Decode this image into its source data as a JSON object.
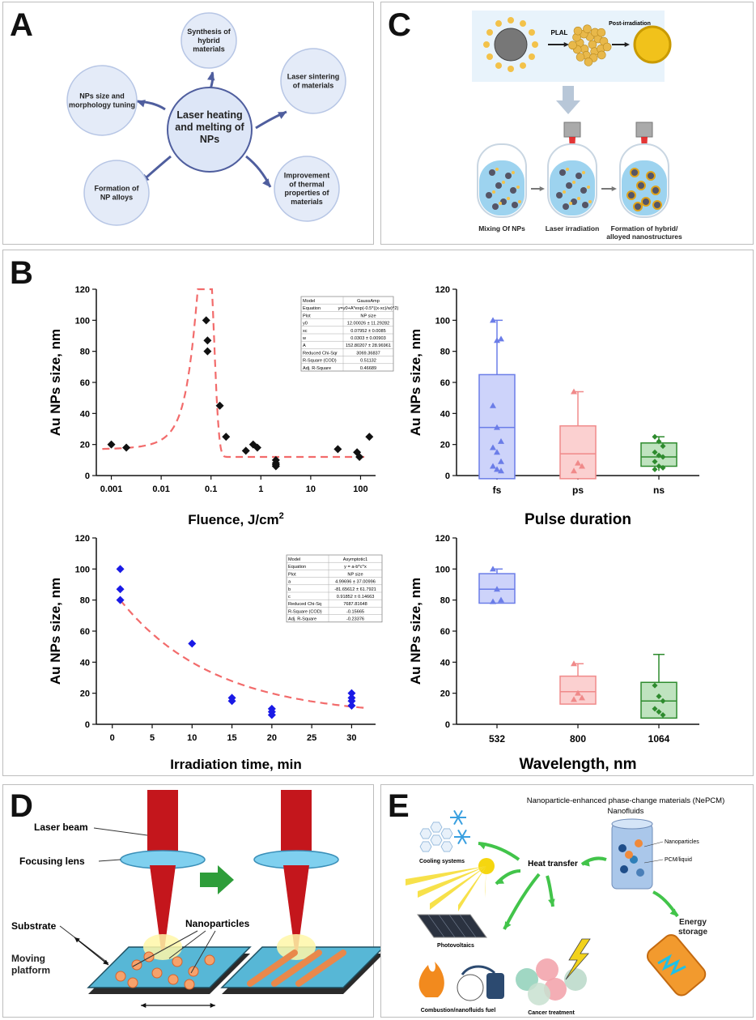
{
  "panels": {
    "A": {
      "label": "A",
      "center": [
        "Laser heating",
        "and melting of",
        "NPs"
      ],
      "nodes": [
        {
          "id": "synthesis",
          "lines": [
            "Synthesis of",
            "hybrid",
            "materials"
          ]
        },
        {
          "id": "sintering",
          "lines": [
            "Laser sintering",
            "of materials"
          ]
        },
        {
          "id": "improvement",
          "lines": [
            "Improvement",
            "of thermal",
            "properties of",
            "materials"
          ]
        },
        {
          "id": "alloys",
          "lines": [
            "Formation of",
            "NP alloys"
          ]
        },
        {
          "id": "tuning",
          "lines": [
            "NPs size and",
            "morphology tuning"
          ]
        }
      ]
    },
    "B": {
      "label": "B"
    },
    "C": {
      "label": "C",
      "pla": "PLAL",
      "post": "Post-irradiation",
      "tubes": [
        {
          "lines": [
            "Mixing Of NPs"
          ]
        },
        {
          "lines": [
            "Laser irradiation"
          ]
        },
        {
          "lines": [
            "Formation of hybrid/",
            "alloyed nanostructures"
          ]
        }
      ]
    },
    "D": {
      "label": "D",
      "laser_beam": "Laser beam",
      "focusing_lens": "Focusing lens",
      "nanoparticles": "Nanoparticles",
      "substrate": "Substrate",
      "moving": [
        "Moving",
        "platform"
      ]
    },
    "E": {
      "label": "E",
      "title": "Nanoparticle-enhanced phase-change materials (NePCM)",
      "subtitle": "Nanofluids",
      "heat": "Heat transfer",
      "nanoparticles": "Nanoparticles",
      "pcm": "PCM/liquid",
      "cooling": "Cooling systems",
      "pv": "Photovoltaics",
      "combustion": "Combustion/nanofluids fuel",
      "cancer": "Cancer treatment",
      "energy": [
        "Energy",
        "storage"
      ]
    }
  },
  "chart_data": [
    {
      "id": "fluence",
      "type": "scatter",
      "xscale": "log",
      "xlabel": "Fluence, J/cm²",
      "xlabel_main": "Fluence, J/cm",
      "xlabel_sup": "2",
      "ylabel": "Au NPs size, nm",
      "ylim": [
        0,
        120
      ],
      "xlim": [
        0.0005,
        200
      ],
      "yticks": [
        0,
        20,
        40,
        60,
        80,
        100,
        120
      ],
      "xticks": [
        0.001,
        0.01,
        0.1,
        1,
        10,
        100
      ],
      "xtick_labels": [
        "0.001",
        "0.01",
        "0.1",
        "1",
        "10",
        "100"
      ],
      "points": [
        [
          0.001,
          20
        ],
        [
          0.002,
          18
        ],
        [
          0.08,
          100
        ],
        [
          0.085,
          87
        ],
        [
          0.085,
          80
        ],
        [
          0.15,
          45
        ],
        [
          0.2,
          25
        ],
        [
          0.5,
          16
        ],
        [
          0.7,
          20
        ],
        [
          0.85,
          18
        ],
        [
          2,
          10
        ],
        [
          2,
          8
        ],
        [
          2,
          7
        ],
        [
          2,
          6
        ],
        [
          35,
          17
        ],
        [
          85,
          15
        ],
        [
          95,
          12
        ],
        [
          150,
          25
        ]
      ],
      "fit": {
        "model": "GaussAmp",
        "y0": 12.00026,
        "xc": 0.07952,
        "w": 0.0303,
        "A": 152.80207,
        "xmax": 0.25
      },
      "fit_table": [
        [
          "Model",
          "GaussAmp"
        ],
        [
          "Equation",
          "y=y0+A*exp(-0.5*((x-xc)/w)^2)"
        ],
        [
          "Plot",
          "NP size"
        ],
        [
          "y0",
          "12.00026 ± 11.29282"
        ],
        [
          "xc",
          "0.07952 ± 0.0085"
        ],
        [
          "w",
          "0.0303 ± 0.00903"
        ],
        [
          "A",
          "152.80207 ± 28.96961"
        ],
        [
          "Reduced Chi-Sqr",
          "3069.36837"
        ],
        [
          "R-Square (COD)",
          "0.51132"
        ],
        [
          "Adj. R-Square",
          "0.46689"
        ]
      ]
    },
    {
      "id": "pulse",
      "type": "box",
      "xlabel": "Pulse duration",
      "ylabel": "Au NPs size, nm",
      "ylim": [
        0,
        120
      ],
      "yticks": [
        0,
        20,
        40,
        60,
        80,
        100,
        120
      ],
      "categories": [
        "fs",
        "ps",
        "ns"
      ],
      "colors": [
        "#6b7de8",
        "#f08a8a",
        "#2e8b2e"
      ],
      "fills": [
        "#cdd3fa",
        "#fbd0d0",
        "#bfe3bf"
      ],
      "boxes": [
        {
          "min": -2,
          "q1": -2,
          "median": 31,
          "q3": 65,
          "max": 100,
          "points": [
            100,
            87,
            88,
            45,
            31,
            22,
            18,
            15,
            9,
            6,
            4,
            3
          ]
        },
        {
          "min": -2,
          "q1": -2,
          "median": 14,
          "q3": 32,
          "max": 54,
          "points": [
            54,
            8,
            6,
            3
          ]
        },
        {
          "min": 3,
          "q1": 6,
          "median": 12,
          "q3": 21,
          "max": 25,
          "points": [
            25,
            22,
            19,
            15,
            13,
            12,
            9,
            6,
            5,
            4
          ]
        }
      ]
    },
    {
      "id": "irradiation",
      "type": "scatter",
      "xlabel": "Irradiation time, min",
      "ylabel": "Au NPs size, nm",
      "ylim": [
        0,
        120
      ],
      "xlim": [
        -2,
        33
      ],
      "yticks": [
        0,
        20,
        40,
        60,
        80,
        100,
        120
      ],
      "xticks": [
        0,
        5,
        10,
        15,
        20,
        25,
        30
      ],
      "points": [
        [
          1,
          100
        ],
        [
          1,
          87
        ],
        [
          1,
          80
        ],
        [
          10,
          52
        ],
        [
          15,
          17
        ],
        [
          15,
          15
        ],
        [
          20,
          10
        ],
        [
          20,
          8
        ],
        [
          20,
          6
        ],
        [
          30,
          20
        ],
        [
          30,
          17
        ],
        [
          30,
          15
        ],
        [
          30,
          12
        ]
      ],
      "fit": {
        "model": "Asymptotic1",
        "a": 4.99696,
        "b": -81.65612,
        "c": 0.91852
      },
      "fit_table": [
        [
          "Model",
          "Asymptotic1"
        ],
        [
          "Equation",
          "y = a-b*c^x"
        ],
        [
          "Plot",
          "NP size"
        ],
        [
          "a",
          "4.99696 ± 37.00996"
        ],
        [
          "b",
          "-81.65612 ± 61.7921"
        ],
        [
          "c",
          "0.91852 ± 0.14663"
        ],
        [
          "Reduced Chi-Sq",
          "7687.81648"
        ],
        [
          "R-Square (COD)",
          "-0.15665"
        ],
        [
          "Adj. R-Square",
          "-0.23376"
        ]
      ]
    },
    {
      "id": "wavelength",
      "type": "box",
      "xlabel": "Wavelength, nm",
      "ylabel": "Au NPs size, nm",
      "ylim": [
        0,
        120
      ],
      "yticks": [
        0,
        20,
        40,
        60,
        80,
        100,
        120
      ],
      "categories": [
        "532",
        "800",
        "1064"
      ],
      "colors": [
        "#6b7de8",
        "#f08a8a",
        "#2e8b2e"
      ],
      "fills": [
        "#cdd3fa",
        "#fbd0d0",
        "#bfe3bf"
      ],
      "boxes": [
        {
          "min": 78,
          "q1": 78,
          "median": 87,
          "q3": 97,
          "max": 100,
          "points": [
            100,
            87,
            80,
            79
          ]
        },
        {
          "min": 13,
          "q1": 13,
          "median": 21,
          "q3": 31,
          "max": 39,
          "points": [
            39,
            20,
            17,
            16
          ]
        },
        {
          "min": 4,
          "q1": 4,
          "median": 15,
          "q3": 27,
          "max": 45,
          "points": [
            25,
            18,
            15,
            10,
            8,
            6
          ]
        }
      ]
    }
  ]
}
